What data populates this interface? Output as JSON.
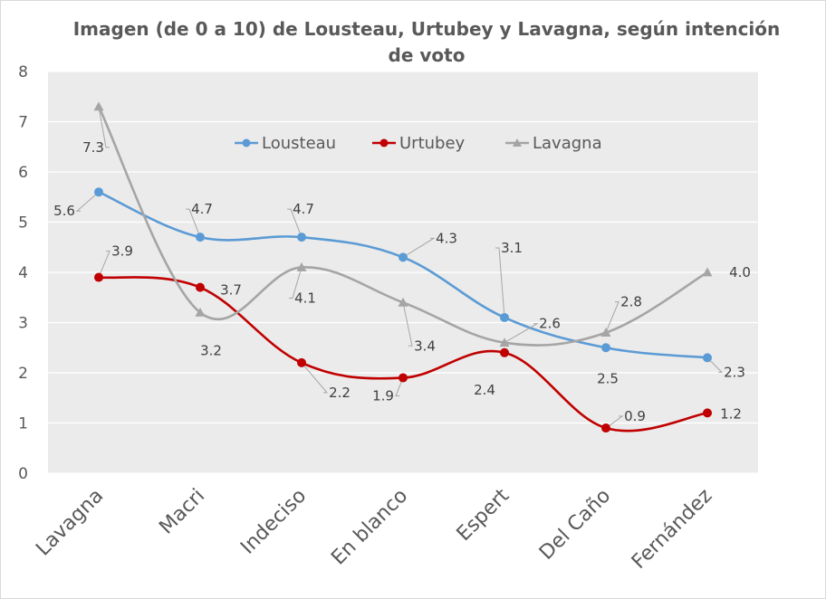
{
  "colors": {
    "plot_background": "#ebebeb",
    "gridline": "#ffffff",
    "text": "#595959",
    "leader_line": "#a6a6a6",
    "lousteau": "#5b9bd5",
    "urtubey": "#c00000",
    "lavagna": "#a5a5a5"
  },
  "chart_data": {
    "type": "line",
    "smooth": true,
    "title_line1": "Imagen (de 0 a 10) de Lousteau, Urtubey y Lavagna, según intención",
    "title_line2": "de voto",
    "xlabel": "",
    "ylabel": "",
    "ylim": [
      0,
      8
    ],
    "yticks": [
      "0",
      "1",
      "2",
      "3",
      "4",
      "5",
      "6",
      "7",
      "8"
    ],
    "grid": true,
    "legend_position": "top-center",
    "categories": [
      "Lavagna",
      "Macri",
      "Indeciso",
      "En blanco",
      "Espert",
      "Del Caño",
      "Fernández"
    ],
    "series": [
      {
        "name": "Lousteau",
        "marker": "circle",
        "values": [
          5.6,
          4.7,
          4.7,
          4.3,
          3.1,
          2.5,
          2.3
        ],
        "labels": [
          "5.6",
          "4.7",
          "4.7",
          "4.3",
          "3.1",
          "2.5",
          "2.3"
        ]
      },
      {
        "name": "Urtubey",
        "marker": "circle",
        "values": [
          3.9,
          3.7,
          2.2,
          1.9,
          2.4,
          0.9,
          1.2
        ],
        "labels": [
          "3.9",
          "3.7",
          "2.2",
          "1.9",
          "2.4",
          "0.9",
          "1.2"
        ]
      },
      {
        "name": "Lavagna",
        "marker": "triangle",
        "values": [
          7.3,
          3.2,
          4.1,
          3.4,
          2.6,
          2.8,
          4.0
        ],
        "labels": [
          "7.3",
          "3.2",
          "4.1",
          "3.4",
          "2.6",
          "2.8",
          "4.0"
        ]
      }
    ]
  }
}
